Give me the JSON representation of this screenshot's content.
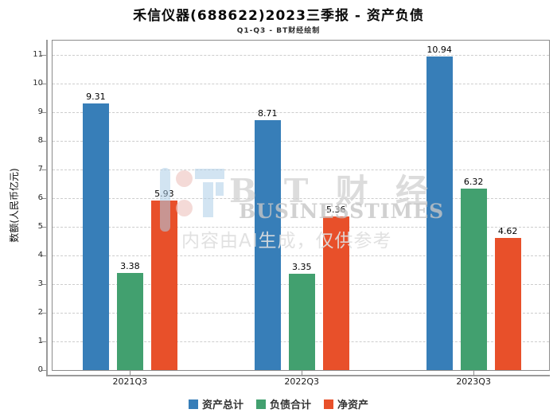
{
  "title": "禾信仪器(688622)2023三季报 - 资产负债",
  "subtitle": "Q1-Q3 - BT财经绘制",
  "watermark": {
    "brand_cn": "B T 财 经",
    "brand_en": "BUSINESSTIMES",
    "disclaimer": "内容由AI生成，仅供参考"
  },
  "chart_data": {
    "type": "bar",
    "title": "禾信仪器(688622)2023三季报 - 资产负债",
    "subtitle": "Q1-Q3 - BT财经绘制",
    "categories": [
      "2021Q3",
      "2022Q3",
      "2023Q3"
    ],
    "series": [
      {
        "name": "资产总计",
        "color": "#377eb8",
        "values": [
          9.31,
          8.71,
          10.94
        ]
      },
      {
        "name": "负债合计",
        "color": "#42a06f",
        "values": [
          3.38,
          3.35,
          6.32
        ]
      },
      {
        "name": "净资产",
        "color": "#e8502a",
        "values": [
          5.93,
          5.36,
          4.62
        ]
      }
    ],
    "xlabel": "",
    "ylabel": "数额(人民币亿元)",
    "yticks": [
      0,
      1,
      2,
      3,
      4,
      5,
      6,
      7,
      8,
      9,
      10,
      11
    ],
    "ylim": [
      0,
      11.5
    ],
    "grid": true,
    "gridline_style": "dashed",
    "legend_position": "bottom"
  }
}
